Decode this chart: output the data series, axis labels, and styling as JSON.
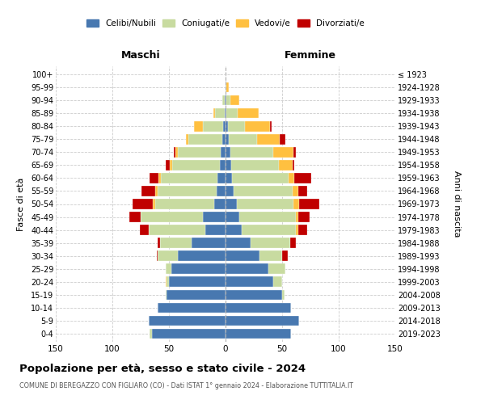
{
  "age_groups_bottom_to_top": [
    "0-4",
    "5-9",
    "10-14",
    "15-19",
    "20-24",
    "25-29",
    "30-34",
    "35-39",
    "40-44",
    "45-49",
    "50-54",
    "55-59",
    "60-64",
    "65-69",
    "70-74",
    "75-79",
    "80-84",
    "85-89",
    "90-94",
    "95-99",
    "100+"
  ],
  "birth_years_bottom_to_top": [
    "2019-2023",
    "2014-2018",
    "2009-2013",
    "2004-2008",
    "1999-2003",
    "1994-1998",
    "1989-1993",
    "1984-1988",
    "1979-1983",
    "1974-1978",
    "1969-1973",
    "1964-1968",
    "1959-1963",
    "1954-1958",
    "1949-1953",
    "1944-1948",
    "1939-1943",
    "1934-1938",
    "1929-1933",
    "1924-1928",
    "≤ 1923"
  ],
  "male_celibi": [
    65,
    68,
    60,
    52,
    50,
    48,
    42,
    30,
    18,
    20,
    10,
    8,
    7,
    5,
    4,
    3,
    2,
    1,
    1,
    0,
    0
  ],
  "male_coniugati": [
    2,
    0,
    0,
    1,
    2,
    5,
    18,
    28,
    50,
    55,
    52,
    52,
    50,
    42,
    38,
    30,
    18,
    8,
    2,
    0,
    0
  ],
  "male_vedovi": [
    0,
    0,
    0,
    0,
    1,
    0,
    0,
    0,
    0,
    0,
    2,
    2,
    2,
    2,
    2,
    2,
    8,
    2,
    0,
    0,
    0
  ],
  "male_divorziati": [
    0,
    0,
    0,
    0,
    0,
    0,
    1,
    2,
    8,
    10,
    18,
    12,
    8,
    4,
    2,
    0,
    0,
    0,
    0,
    0,
    0
  ],
  "fem_nubili": [
    58,
    65,
    58,
    50,
    42,
    38,
    30,
    22,
    14,
    12,
    10,
    7,
    6,
    5,
    4,
    3,
    2,
    1,
    1,
    0,
    0
  ],
  "fem_coniugate": [
    0,
    0,
    0,
    2,
    8,
    15,
    20,
    35,
    48,
    50,
    50,
    52,
    50,
    42,
    38,
    25,
    15,
    10,
    3,
    1,
    0
  ],
  "fem_vedove": [
    0,
    0,
    0,
    0,
    0,
    0,
    0,
    0,
    2,
    2,
    5,
    5,
    5,
    12,
    18,
    20,
    22,
    18,
    8,
    2,
    0
  ],
  "fem_divorziate": [
    0,
    0,
    0,
    0,
    0,
    0,
    5,
    5,
    8,
    10,
    18,
    8,
    15,
    2,
    2,
    5,
    2,
    0,
    0,
    0,
    0
  ],
  "colors": {
    "celibi": "#4878b0",
    "coniugati": "#c8dba0",
    "vedovi": "#ffc040",
    "divorziati": "#c00000"
  },
  "legend_labels": [
    "Celibi/Nubili",
    "Coniugati/e",
    "Vedovi/e",
    "Divorziati/e"
  ],
  "title": "Popolazione per età, sesso e stato civile - 2024",
  "subtitle": "COMUNE DI BEREGAZZO CON FIGLIARO (CO) - Dati ISTAT 1° gennaio 2024 - Elaborazione TUTTITALIA.IT",
  "label_maschi": "Maschi",
  "label_femmine": "Femmine",
  "ylabel_left": "Fasce di età",
  "ylabel_right": "Anni di nascita",
  "xlim": 150
}
